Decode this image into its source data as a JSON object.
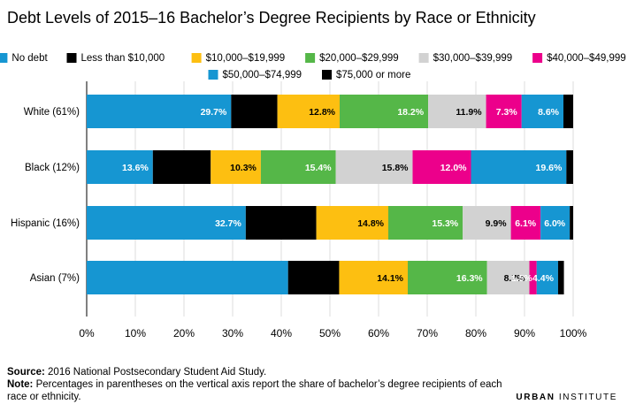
{
  "chart_data": {
    "type": "bar",
    "orientation": "horizontal",
    "stacked": true,
    "title": "Debt Levels of 2015–16 Bachelor’s Degree Recipients by Race or Ethnicity",
    "categories": [
      "White (61%)",
      "Black (12%)",
      "Hispanic (16%)",
      "Asian (7%)"
    ],
    "series": [
      {
        "name": "No debt",
        "color": "#1696d2",
        "values": [
          29.7,
          13.6,
          32.7,
          41.4
        ],
        "labels": [
          "29.7%",
          "13.6%",
          "32.7%",
          ""
        ]
      },
      {
        "name": "Less than $10,000",
        "color": "#000000",
        "values": [
          9.5,
          11.9,
          14.5,
          10.5
        ],
        "labels": [
          "",
          "",
          "",
          ""
        ]
      },
      {
        "name": "$10,000–$19,999",
        "color": "#fdbf11",
        "values": [
          12.8,
          10.3,
          14.8,
          14.1
        ],
        "labels": [
          "12.8%",
          "10.3%",
          "14.8%",
          "14.1%"
        ]
      },
      {
        "name": "$20,000–$29,999",
        "color": "#55b748",
        "values": [
          18.2,
          15.4,
          15.3,
          16.3
        ],
        "labels": [
          "18.2%",
          "15.4%",
          "15.3%",
          "16.3%"
        ]
      },
      {
        "name": "$30,000–$39,999",
        "color": "#d2d2d2",
        "values": [
          11.9,
          15.8,
          9.9,
          8.7
        ],
        "labels": [
          "11.9%",
          "15.8%",
          "9.9%",
          "8.7%"
        ]
      },
      {
        "name": "$40,000–$49,999",
        "color": "#ec008b",
        "values": [
          7.3,
          12.0,
          6.1,
          1.5
        ],
        "labels": [
          "7.3%",
          "12.0%",
          "6.1%",
          "1.5%"
        ]
      },
      {
        "name": "$50,000–$74,999",
        "color": "#1696d2",
        "values": [
          8.6,
          19.6,
          6.0,
          4.4
        ],
        "labels": [
          "8.6%",
          "19.6%",
          "6.0%",
          "4.4%"
        ]
      },
      {
        "name": "$75,000 or more",
        "color": "#000000",
        "values": [
          2.0,
          1.4,
          0.7,
          1.2
        ],
        "labels": [
          "",
          "",
          "",
          ""
        ]
      }
    ],
    "xlim": [
      0,
      100
    ],
    "xticks": [
      "0%",
      "10%",
      "20%",
      "30%",
      "40%",
      "50%",
      "60%",
      "70%",
      "80%",
      "90%",
      "100%"
    ],
    "legend": "top"
  },
  "footer": {
    "source_label": "Source:",
    "source_text": "2016 National Postsecondary Student Aid Study.",
    "note_label": "Note:",
    "note_text": "Percentages in parentheses on the vertical axis report the share of bachelor’s degree recipients of each race or ethnicity."
  },
  "brand": {
    "bold": "URBAN",
    "thin": "INSTITUTE"
  }
}
